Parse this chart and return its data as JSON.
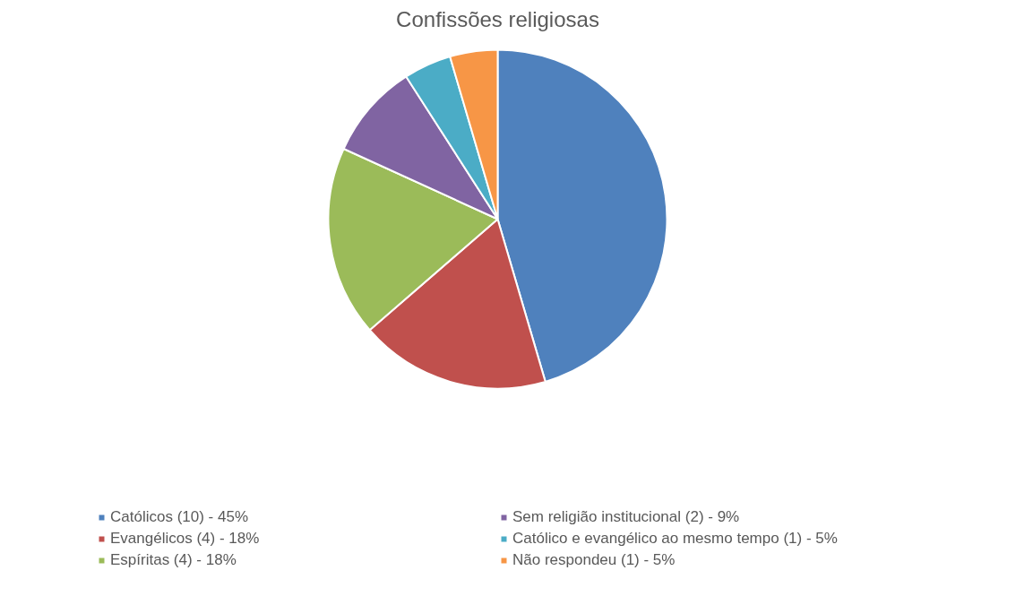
{
  "chart_data": {
    "type": "pie",
    "title": "Confissões religiosas",
    "categories": [
      "Católicos (10) - 45%",
      "Evangélicos (4) - 18%",
      "Espíritas (4) - 18%",
      "Sem religião institucional (2) - 9%",
      "Católico e evangélico ao mesmo tempo (1) - 5%",
      "Não respondeu (1) - 5%"
    ],
    "values": [
      10,
      4,
      4,
      2,
      1,
      1
    ],
    "colors": [
      "#4f81bd",
      "#c0504d",
      "#9bbb59",
      "#8064a2",
      "#4bacc6",
      "#f79646"
    ],
    "legend": "bottom"
  }
}
